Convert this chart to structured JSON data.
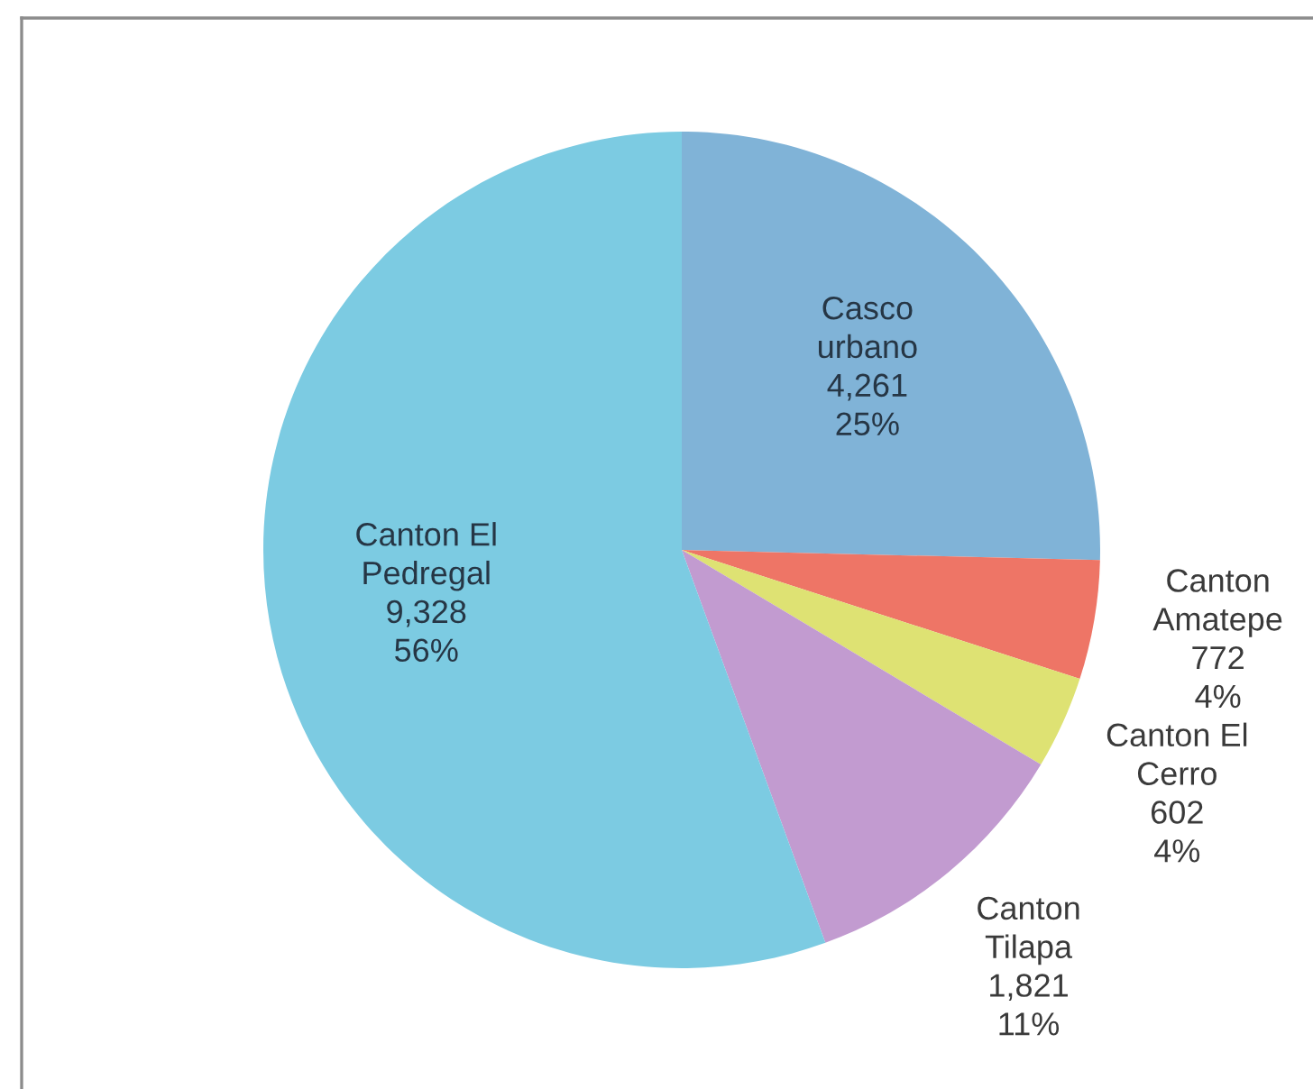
{
  "chart_data": {
    "type": "pie",
    "categories": [
      "Casco urbano",
      "Canton Amatepe",
      "Canton El Cerro",
      "Canton Tilapa",
      "Canton El Pedregal"
    ],
    "values": [
      4261,
      772,
      602,
      1821,
      9328
    ],
    "colors": [
      "#80b3d7",
      "#ee7566",
      "#dee273",
      "#c29bd0",
      "#7ccbe2"
    ],
    "value_labels": [
      "4,261\n25%",
      "772\n4%",
      "602\n4%",
      "1,821\n11%",
      "9,328\n56%"
    ]
  }
}
